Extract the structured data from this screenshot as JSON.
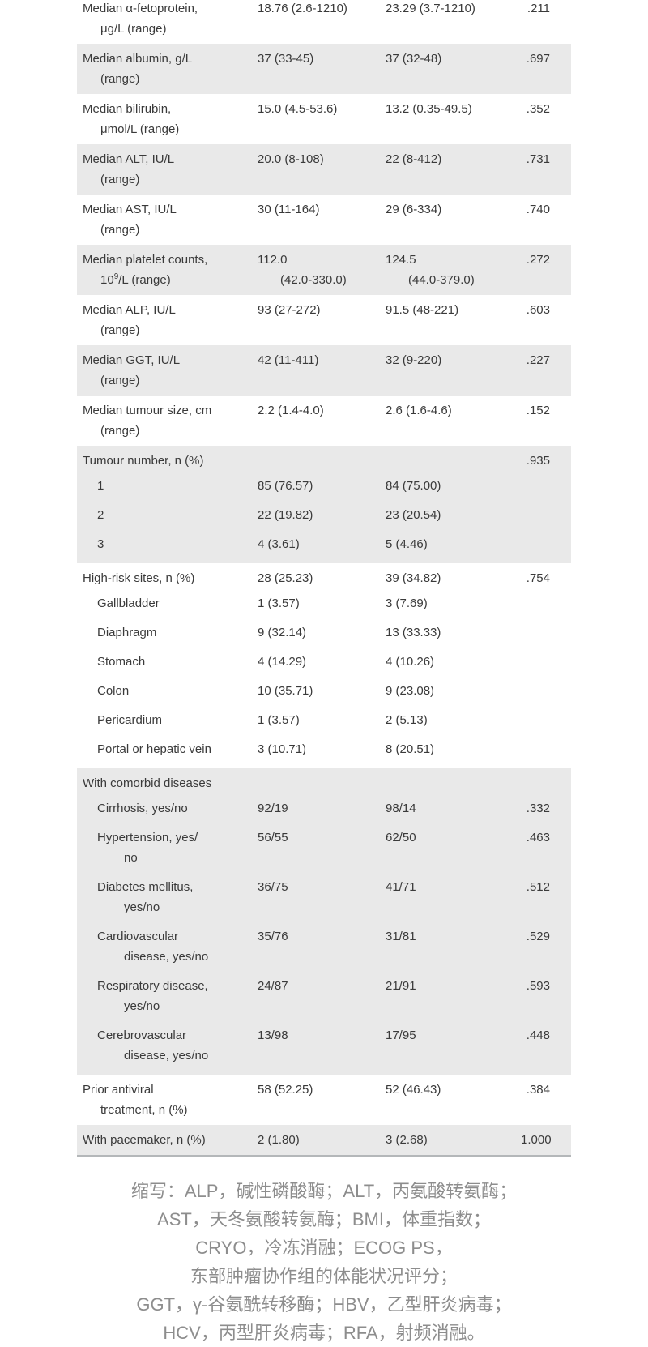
{
  "colors": {
    "row_shade": "#e9e9e9",
    "table_bottom_rule": "#b4b7b9",
    "table_text": "#3a3a3a",
    "footnote_text": "#8d8d8d"
  },
  "table": {
    "rows": {
      "afp": {
        "label1": "Median α-fetoprotein,",
        "label2": "μg/L (range)",
        "group1": "18.76 (2.6-1210)",
        "group2": "23.29 (3.7-1210)",
        "p": ".211"
      },
      "albumin": {
        "label1": "Median albumin, g/L",
        "label2": "(range)",
        "group1": "37 (33-45)",
        "group2": "37 (32-48)",
        "p": ".697"
      },
      "bilirubin": {
        "label1": "Median bilirubin,",
        "label2": "μmol/L (range)",
        "group1": "15.0 (4.5-53.6)",
        "group2": "13.2 (0.35-49.5)",
        "p": ".352"
      },
      "alt": {
        "label1": "Median ALT, IU/L",
        "label2": "(range)",
        "group1": "20.0 (8-108)",
        "group2": "22 (8-412)",
        "p": ".731"
      },
      "ast": {
        "label1": "Median AST, IU/L",
        "label2": "(range)",
        "group1": "30 (11-164)",
        "group2": "29 (6-334)",
        "p": ".740"
      },
      "platelet": {
        "label1": "Median platelet counts,",
        "unit_pre": "10",
        "unit_sup": "9",
        "unit_post": "/L (range)",
        "group1_line1": "112.0",
        "group1_line2": "(42.0-330.0)",
        "group2_line1": "124.5",
        "group2_line2": "(44.0-379.0)",
        "p": ".272"
      },
      "alp": {
        "label1": "Median ALP, IU/L",
        "label2": "(range)",
        "group1": "93 (27-272)",
        "group2": "91.5 (48-221)",
        "p": ".603"
      },
      "ggt": {
        "label1": "Median GGT, IU/L",
        "label2": "(range)",
        "group1": "42 (11-411)",
        "group2": "32 (9-220)",
        "p": ".227"
      },
      "tumour_size": {
        "label1": "Median tumour size, cm",
        "label2": "(range)",
        "group1": "2.2 (1.4-4.0)",
        "group2": "2.6 (1.6-4.6)",
        "p": ".152"
      },
      "tumour_number": {
        "label": "Tumour number, n (%)",
        "p": ".935",
        "subs": [
          {
            "label": "1",
            "group1": "85 (76.57)",
            "group2": "84 (75.00)"
          },
          {
            "label": "2",
            "group1": "22 (19.82)",
            "group2": "23 (20.54)"
          },
          {
            "label": "3",
            "group1": "4 (3.61)",
            "group2": "5 (4.46)"
          }
        ]
      },
      "high_risk": {
        "label": "High-risk sites, n (%)",
        "group1": "28 (25.23)",
        "group2": "39 (34.82)",
        "p": ".754",
        "subs": [
          {
            "label": "Gallbladder",
            "group1": "1 (3.57)",
            "group2": "3 (7.69)"
          },
          {
            "label": "Diaphragm",
            "group1": "9 (32.14)",
            "group2": "13 (33.33)"
          },
          {
            "label": "Stomach",
            "group1": "4 (14.29)",
            "group2": "4 (10.26)"
          },
          {
            "label": "Colon",
            "group1": "10 (35.71)",
            "group2": "9 (23.08)"
          },
          {
            "label": "Pericardium",
            "group1": "1 (3.57)",
            "group2": "2 (5.13)"
          },
          {
            "label": "Portal or hepatic vein",
            "group1": "3 (10.71)",
            "group2": "8 (20.51)"
          }
        ]
      },
      "comorbid": {
        "label": "With comorbid diseases",
        "subs": [
          {
            "label1": "Cirrhosis, yes/no",
            "label2": "",
            "group1": "92/19",
            "group2": "98/14",
            "p": ".332"
          },
          {
            "label1": "Hypertension, yes/",
            "label2": "no",
            "group1": "56/55",
            "group2": "62/50",
            "p": ".463"
          },
          {
            "label1": "Diabetes mellitus,",
            "label2": "yes/no",
            "group1": "36/75",
            "group2": "41/71",
            "p": ".512"
          },
          {
            "label1": "Cardiovascular",
            "label2": "disease, yes/no",
            "group1": "35/76",
            "group2": "31/81",
            "p": ".529"
          },
          {
            "label1": "Respiratory disease,",
            "label2": "yes/no",
            "group1": "24/87",
            "group2": "21/91",
            "p": ".593"
          },
          {
            "label1": "Cerebrovascular",
            "label2": "disease, yes/no",
            "group1": "13/98",
            "group2": "17/95",
            "p": ".448"
          }
        ]
      },
      "prior_antiviral": {
        "label1": "Prior antiviral",
        "label2": "treatment, n (%)",
        "group1": "58 (52.25)",
        "group2": "52 (46.43)",
        "p": ".384"
      },
      "pacemaker": {
        "label": "With pacemaker, n (%)",
        "group1": "2 (1.80)",
        "group2": "3 (2.68)",
        "p": "1.000"
      }
    }
  },
  "footnote": {
    "lines": [
      "缩写：ALP，碱性磷酸酶；ALT，丙氨酸转氨酶；",
      "AST，天冬氨酸转氨酶；BMI，体重指数；",
      "CRYO，冷冻消融；ECOG PS，",
      "东部肿瘤协作组的体能状况评分；",
      "GGT，γ-谷氨酰转移酶；HBV，乙型肝炎病毒；",
      "HCV，丙型肝炎病毒；RFA，射频消融。"
    ]
  }
}
